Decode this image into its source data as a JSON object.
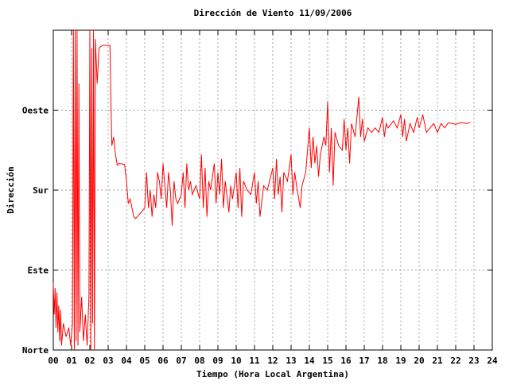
{
  "chart_data": {
    "type": "line",
    "title": "Dirección de Viento 11/09/2006",
    "xlabel": "Tiempo (Hora Local Argentina)",
    "ylabel": "Dirección",
    "color": "#ff0000",
    "grid": true,
    "xlim": [
      0,
      24
    ],
    "ylim": [
      0,
      360
    ],
    "xticks": [
      {
        "value": 0,
        "label": "00"
      },
      {
        "value": 1,
        "label": "01"
      },
      {
        "value": 2,
        "label": "02"
      },
      {
        "value": 3,
        "label": "03"
      },
      {
        "value": 4,
        "label": "04"
      },
      {
        "value": 5,
        "label": "05"
      },
      {
        "value": 6,
        "label": "06"
      },
      {
        "value": 7,
        "label": "07"
      },
      {
        "value": 8,
        "label": "08"
      },
      {
        "value": 9,
        "label": "09"
      },
      10,
      11,
      12,
      13,
      14,
      15,
      16,
      17,
      18,
      19,
      20,
      21,
      22,
      23,
      24
    ],
    "yticks": [
      {
        "value": 0,
        "label": "Norte"
      },
      {
        "value": 90,
        "label": "Este"
      },
      {
        "value": 180,
        "label": "Sur"
      },
      {
        "value": 270,
        "label": "Oeste"
      }
    ],
    "x": [
      0.0,
      0.05,
      0.1,
      0.15,
      0.2,
      0.25,
      0.3,
      0.35,
      0.4,
      0.45,
      0.55,
      0.7,
      0.85,
      0.95,
      1.05,
      1.1,
      1.15,
      1.2,
      1.25,
      1.3,
      1.35,
      1.4,
      1.45,
      1.55,
      1.65,
      1.75,
      1.85,
      1.95,
      2.0,
      2.05,
      2.1,
      2.15,
      2.2,
      2.25,
      2.3,
      2.4,
      2.5,
      2.7,
      3.1,
      3.15,
      3.2,
      3.3,
      3.4,
      3.5,
      3.6,
      3.9,
      4.0,
      4.1,
      4.2,
      4.3,
      4.4,
      4.5,
      4.8,
      5.0,
      5.1,
      5.2,
      5.3,
      5.4,
      5.5,
      5.6,
      5.7,
      5.8,
      5.9,
      6.0,
      6.1,
      6.2,
      6.3,
      6.4,
      6.5,
      6.6,
      6.7,
      6.8,
      7.0,
      7.1,
      7.2,
      7.3,
      7.4,
      7.5,
      7.6,
      7.8,
      8.0,
      8.1,
      8.2,
      8.3,
      8.4,
      8.5,
      8.6,
      8.8,
      8.9,
      9.0,
      9.1,
      9.2,
      9.3,
      9.4,
      9.6,
      9.7,
      9.8,
      10.0,
      10.1,
      10.2,
      10.3,
      10.4,
      10.6,
      10.8,
      11.0,
      11.1,
      11.2,
      11.3,
      11.5,
      11.7,
      12.0,
      12.1,
      12.2,
      12.3,
      12.4,
      12.5,
      12.6,
      12.8,
      13.0,
      13.1,
      13.2,
      13.3,
      13.5,
      13.6,
      13.8,
      14.0,
      14.1,
      14.2,
      14.3,
      14.4,
      14.5,
      14.6,
      14.8,
      14.9,
      15.0,
      15.1,
      15.2,
      15.3,
      15.4,
      15.6,
      15.8,
      15.9,
      16.0,
      16.1,
      16.2,
      16.3,
      16.5,
      16.7,
      16.8,
      16.9,
      17.0,
      17.2,
      17.4,
      17.6,
      17.8,
      18.0,
      18.1,
      18.2,
      18.3,
      18.6,
      18.8,
      19.0,
      19.1,
      19.2,
      19.3,
      19.5,
      19.7,
      19.9,
      20.0,
      20.2,
      20.4,
      20.6,
      20.8,
      21.0,
      21.2,
      21.4,
      21.6,
      21.8,
      22.0,
      22.3,
      22.6,
      22.8
    ],
    "values": [
      75,
      40,
      70,
      25,
      65,
      20,
      50,
      10,
      45,
      5,
      30,
      15,
      25,
      5,
      30,
      360,
      0,
      360,
      10,
      360,
      5,
      300,
      20,
      60,
      10,
      40,
      5,
      60,
      360,
      0,
      340,
      30,
      360,
      0,
      350,
      300,
      340,
      343,
      343,
      280,
      230,
      240,
      220,
      208,
      210,
      209,
      190,
      165,
      170,
      160,
      150,
      148,
      155,
      160,
      200,
      160,
      180,
      150,
      175,
      160,
      200,
      190,
      170,
      210,
      185,
      160,
      200,
      180,
      140,
      190,
      170,
      165,
      175,
      200,
      160,
      210,
      180,
      190,
      175,
      185,
      170,
      220,
      160,
      205,
      150,
      190,
      180,
      210,
      165,
      200,
      175,
      215,
      160,
      190,
      155,
      185,
      170,
      200,
      160,
      205,
      150,
      190,
      180,
      175,
      200,
      165,
      190,
      150,
      185,
      180,
      205,
      170,
      215,
      175,
      195,
      155,
      200,
      190,
      220,
      175,
      200,
      185,
      160,
      185,
      200,
      250,
      205,
      240,
      210,
      230,
      195,
      220,
      240,
      230,
      280,
      200,
      250,
      185,
      245,
      230,
      225,
      260,
      225,
      250,
      210,
      255,
      240,
      285,
      240,
      260,
      235,
      250,
      245,
      250,
      245,
      262,
      240,
      255,
      250,
      258,
      250,
      265,
      240,
      260,
      235,
      255,
      245,
      262,
      250,
      265,
      245,
      250,
      255,
      245,
      255,
      250,
      256,
      255,
      254,
      256,
      255,
      256
    ]
  }
}
